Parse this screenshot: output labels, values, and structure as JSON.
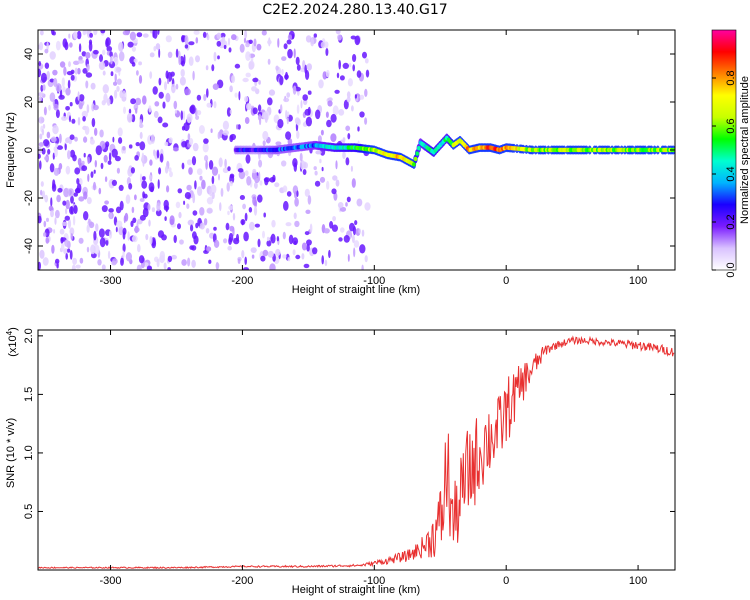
{
  "title": "C2E2.2024.280.13.40.G17",
  "chart_data": [
    {
      "type": "heatmap",
      "xlabel": "Height of straight line (km)",
      "ylabel": "Frequency (Hz)",
      "xlim": [
        -355,
        128
      ],
      "ylim": [
        -50,
        50
      ],
      "xticks": [
        -300,
        -200,
        -100,
        0,
        100
      ],
      "yticks": [
        -40,
        -20,
        0,
        20,
        40
      ],
      "colorbar": {
        "label": "Normalized spectral amplitude",
        "range": [
          0.0,
          1.0
        ],
        "ticks": [
          0.0,
          0.2,
          0.4,
          0.6,
          0.8
        ],
        "colors": [
          "#ffffff",
          "#d9c2ff",
          "#7a1cff",
          "#1a00ff",
          "#00b4ff",
          "#00ffd0",
          "#00ff00",
          "#c8ff00",
          "#ffff00",
          "#ff8000",
          "#ff0000",
          "#ff00a0"
        ]
      },
      "noise_region": {
        "x": [
          -355,
          -105
        ],
        "amplitude": [
          0.05,
          0.2
        ]
      },
      "signal_trace": {
        "x": [
          -205,
          -190,
          -175,
          -160,
          -145,
          -130,
          -115,
          -100,
          -90,
          -80,
          -70,
          -65,
          -55,
          -45,
          -40,
          -35,
          -28,
          -20,
          -12,
          -5,
          0,
          20,
          50,
          90,
          128
        ],
        "y": [
          0,
          0,
          0,
          1,
          2,
          1,
          1,
          0,
          -2,
          -3,
          -6,
          3,
          -1,
          5,
          2,
          4,
          0,
          1,
          1,
          0,
          1,
          0,
          0,
          0,
          0
        ],
        "amp": [
          0.25,
          0.22,
          0.3,
          0.3,
          0.35,
          0.45,
          0.5,
          0.65,
          0.7,
          0.75,
          0.6,
          0.4,
          0.5,
          0.45,
          0.6,
          0.7,
          0.8,
          0.75,
          0.9,
          0.85,
          0.8,
          0.6,
          0.6,
          0.6,
          0.6
        ]
      }
    },
    {
      "type": "line",
      "xlabel": "Height of straight line (km)",
      "ylabel": "SNR (10 * v/v)",
      "yscale_label": "(x10",
      "yscale_exp": "4",
      "yscale_close": ")",
      "xlim": [
        -355,
        128
      ],
      "ylim": [
        0,
        2.05
      ],
      "xticks": [
        -300,
        -200,
        -100,
        0,
        100
      ],
      "yticks": [
        0.5,
        1.0,
        1.5,
        2.0
      ],
      "color": "#e83030",
      "series": [
        {
          "x": [
            -355,
            -300,
            -250,
            -200,
            -150,
            -110,
            -90,
            -75,
            -65,
            -58,
            -52,
            -48,
            -45,
            -42,
            -40,
            -35,
            -30,
            -25,
            -20,
            -15,
            -10,
            -5,
            0,
            5,
            10,
            15,
            20,
            25,
            30,
            40,
            50,
            60,
            70,
            80,
            90,
            100,
            110,
            120,
            128
          ],
          "y": [
            0.02,
            0.02,
            0.02,
            0.03,
            0.03,
            0.04,
            0.08,
            0.12,
            0.18,
            0.25,
            0.35,
            0.5,
            0.9,
            0.55,
            0.4,
            0.6,
            0.8,
            0.9,
            1.0,
            1.1,
            1.15,
            1.2,
            1.35,
            1.45,
            1.55,
            1.65,
            1.72,
            1.8,
            1.88,
            1.93,
            1.96,
            1.96,
            1.95,
            1.94,
            1.93,
            1.92,
            1.9,
            1.88,
            1.86
          ],
          "noise": [
            0.005,
            0.005,
            0.006,
            0.006,
            0.008,
            0.01,
            0.03,
            0.05,
            0.08,
            0.15,
            0.25,
            0.35,
            0.55,
            0.35,
            0.3,
            0.35,
            0.4,
            0.4,
            0.35,
            0.35,
            0.3,
            0.3,
            0.3,
            0.25,
            0.2,
            0.15,
            0.12,
            0.08,
            0.05,
            0.03,
            0.03,
            0.03,
            0.03,
            0.03,
            0.04,
            0.04,
            0.04,
            0.04,
            0.04
          ]
        }
      ]
    }
  ]
}
